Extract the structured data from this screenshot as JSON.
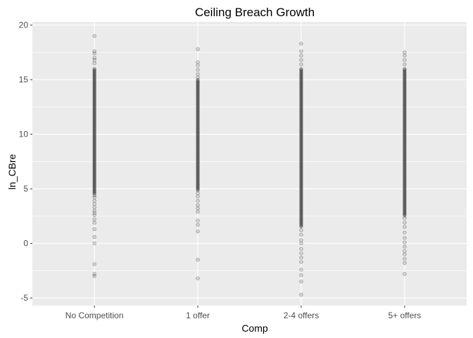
{
  "chart_data": {
    "type": "scatter",
    "title": "Ceiling Breach Growth",
    "xlabel": "Comp",
    "ylabel": "ln_CBre",
    "categories": [
      "No Competition",
      "1 offer",
      "2-4 offers",
      "5+ offers"
    ],
    "ylim": [
      -5.7,
      20.3
    ],
    "yticks": [
      -5,
      0,
      5,
      10,
      15,
      20
    ],
    "grid": true,
    "legend": "none",
    "colors": {
      "panel": "#ebebeb",
      "grid": "#ffffff",
      "point_fill": "#000000",
      "point_stroke": "#333333"
    },
    "series": [
      {
        "category": "No Competition",
        "dense_range": [
          4.5,
          16.0
        ],
        "outliers": [
          19.0,
          17.6,
          17.4,
          17.0,
          16.8,
          16.5,
          4.4,
          4.2,
          3.9,
          3.6,
          3.3,
          3.0,
          2.8,
          2.6,
          2.2,
          1.9,
          1.3,
          0.6,
          0.0,
          -1.9,
          -2.8,
          -3.0
        ]
      },
      {
        "category": "1 offer",
        "dense_range": [
          4.8,
          15.0
        ],
        "outliers": [
          17.8,
          16.6,
          16.3,
          15.9,
          15.5,
          15.2,
          4.6,
          4.3,
          3.9,
          3.5,
          3.2,
          2.9,
          2.1,
          1.7,
          1.1,
          -1.5,
          -3.2
        ]
      },
      {
        "category": "2-4 offers",
        "dense_range": [
          1.5,
          16.0
        ],
        "outliers": [
          18.3,
          17.6,
          17.2,
          16.8,
          16.4,
          1.2,
          0.8,
          0.3,
          0.0,
          -0.5,
          -0.9,
          -1.3,
          -1.7,
          -2.4,
          -2.9,
          -3.5,
          -4.7
        ]
      },
      {
        "category": "5+ offers",
        "dense_range": [
          2.5,
          16.0
        ],
        "outliers": [
          17.5,
          17.2,
          16.8,
          16.4,
          2.3,
          1.9,
          1.5,
          1.0,
          0.5,
          0.1,
          -0.3,
          -0.7,
          -1.0,
          -1.4,
          -1.8,
          -2.8
        ]
      }
    ]
  }
}
